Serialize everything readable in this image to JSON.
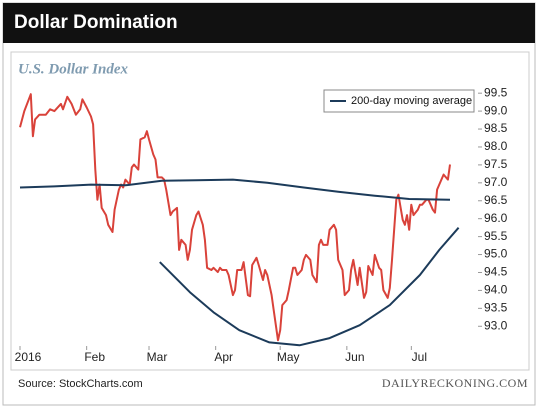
{
  "chart_data": {
    "type": "line",
    "title": "Dollar Domination",
    "subtitle": "U.S. Dollar Index",
    "source": "Source: StockCharts.com",
    "credit": "DAILYRECKONING.COM",
    "xlim": [
      0,
      213
    ],
    "xticks": [
      {
        "value": 0,
        "label": "2016"
      },
      {
        "value": 31,
        "label": "Feb"
      },
      {
        "value": 60,
        "label": "Mar"
      },
      {
        "value": 91,
        "label": "Apr"
      },
      {
        "value": 121,
        "label": "May"
      },
      {
        "value": 152,
        "label": "Jun"
      },
      {
        "value": 182,
        "label": "Jul"
      }
    ],
    "ylim": [
      92.45,
      99.7
    ],
    "yticks": [
      {
        "value": 93,
        "label": "93.0"
      },
      93.5,
      {
        "value": 94,
        "label": "94.0"
      },
      94.5,
      {
        "value": 95,
        "label": "95.0"
      },
      95.5,
      {
        "value": 96,
        "label": "96.0"
      },
      96.5,
      {
        "value": 97,
        "label": "97.0"
      },
      97.5,
      {
        "value": 98,
        "label": "98.0"
      },
      98.5,
      {
        "value": 99,
        "label": "99.0"
      },
      99.5
    ],
    "legend": "top-right",
    "series": [
      {
        "color": "#d9423a",
        "x": [
          0,
          2,
          5,
          6,
          7,
          9,
          12,
          14,
          16,
          19,
          20,
          22,
          24,
          26,
          28,
          29,
          31,
          33,
          34,
          35,
          36,
          37,
          38,
          40,
          41,
          43,
          44,
          46,
          47,
          48,
          49,
          51,
          52,
          53,
          55,
          56,
          58,
          59,
          60,
          62,
          63,
          64,
          66,
          67,
          68,
          70,
          71,
          73,
          74,
          75,
          77,
          78,
          79,
          80,
          82,
          83,
          85,
          86,
          87,
          89,
          90,
          92,
          93,
          94,
          96,
          97,
          99,
          100,
          101,
          103,
          104,
          106,
          107,
          108,
          110,
          111,
          113,
          114,
          115,
          117,
          118,
          120,
          121,
          122,
          124,
          125,
          127,
          128,
          129,
          131,
          132,
          133,
          135,
          136,
          138,
          139,
          140,
          141,
          143,
          144,
          146,
          147,
          148,
          150,
          151,
          153,
          154,
          155,
          157,
          158,
          160,
          161,
          162,
          164,
          165,
          167,
          168,
          169,
          171,
          172,
          173,
          175,
          176,
          178,
          179,
          180,
          181,
          182,
          183,
          185,
          186,
          187,
          189,
          190,
          192,
          193,
          194,
          196,
          197,
          199,
          200
        ],
        "values": [
          98.55,
          99.0,
          99.47,
          98.3,
          98.77,
          98.9,
          98.9,
          99.05,
          99.0,
          99.2,
          99.05,
          99.4,
          99.2,
          98.9,
          99.05,
          99.33,
          99.1,
          98.85,
          98.63,
          97.37,
          96.53,
          96.95,
          96.3,
          96.1,
          95.83,
          95.63,
          96.25,
          96.81,
          96.95,
          96.87,
          97.09,
          96.95,
          97.43,
          97.51,
          97.37,
          98.21,
          98.27,
          98.44,
          98.21,
          97.79,
          97.65,
          97.15,
          97.15,
          97.09,
          96.81,
          96.1,
          96.2,
          96.3,
          95.13,
          95.41,
          95.27,
          94.85,
          95.13,
          95.69,
          96.1,
          96.2,
          95.83,
          95.41,
          94.63,
          94.57,
          94.63,
          94.51,
          94.63,
          94.57,
          94.57,
          94.43,
          93.87,
          94.01,
          94.57,
          94.57,
          94.79,
          93.87,
          93.84,
          94.71,
          94.91,
          94.71,
          94.29,
          94.57,
          94.43,
          93.87,
          93.45,
          92.61,
          92.89,
          93.59,
          93.73,
          94.01,
          94.63,
          94.63,
          94.43,
          94.57,
          94.85,
          94.99,
          94.85,
          94.43,
          94.23,
          95.27,
          95.41,
          95.27,
          95.27,
          95.69,
          95.83,
          95.69,
          94.85,
          94.57,
          93.87,
          94.01,
          94.57,
          94.85,
          94.15,
          94.63,
          93.79,
          93.95,
          94.68,
          94.43,
          94.99,
          94.63,
          94.57,
          94.01,
          93.79,
          94.07,
          94.85,
          96.53,
          96.67,
          95.97,
          95.83,
          96.1,
          95.69,
          96.39,
          96.1,
          96.25,
          96.39,
          96.39,
          96.53,
          96.53,
          96.25,
          96.17,
          96.81,
          97.09,
          97.23,
          97.09,
          97.51
        ]
      },
      {
        "name": "200-day moving average",
        "color": "#1c3b5a",
        "x": [
          0,
          16,
          33,
          49,
          66,
          82,
          99,
          115,
          132,
          148,
          165,
          181,
          200
        ],
        "values": [
          96.87,
          96.9,
          96.95,
          96.93,
          97.06,
          97.07,
          97.09,
          97.0,
          96.87,
          96.75,
          96.64,
          96.55,
          96.53
        ]
      },
      {
        "color": "#1c3b5a",
        "x": [
          65,
          79,
          90,
          102,
          116,
          130,
          144,
          158,
          172,
          186,
          195,
          204
        ],
        "values": [
          94.79,
          93.95,
          93.39,
          92.89,
          92.55,
          92.47,
          92.67,
          93.03,
          93.59,
          94.43,
          95.13,
          95.75
        ]
      }
    ]
  }
}
